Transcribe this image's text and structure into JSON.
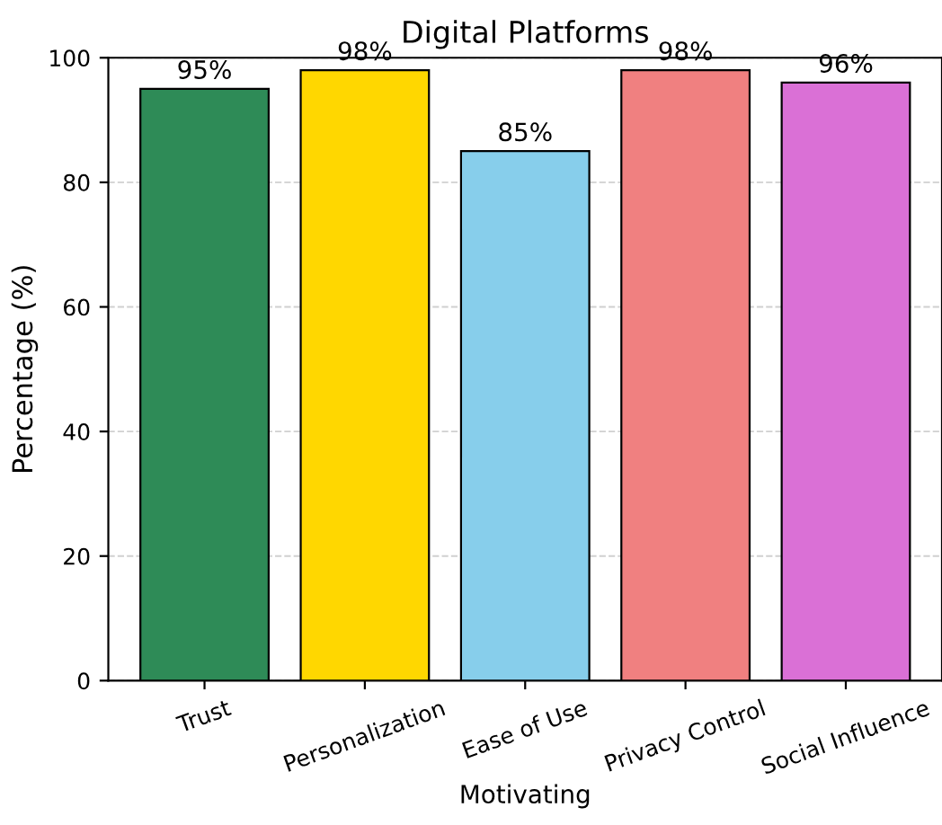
{
  "chart_data": {
    "type": "bar",
    "title": "Digital Platforms",
    "xlabel": "Motivating",
    "ylabel": "Percentage (%)",
    "categories": [
      "Trust",
      "Personalization",
      "Ease of Use",
      "Privacy Control",
      "Social Influence"
    ],
    "values": [
      95,
      98,
      85,
      98,
      96
    ],
    "colors": [
      "#2e8b57",
      "#ffd700",
      "#87ceeb",
      "#f08080",
      "#da70d6"
    ],
    "value_labels": [
      "95%",
      "98%",
      "85%",
      "98%",
      "96%"
    ],
    "ylim": [
      0,
      100
    ],
    "yticks": [
      0,
      20,
      40,
      60,
      80,
      100
    ],
    "grid": "y"
  }
}
